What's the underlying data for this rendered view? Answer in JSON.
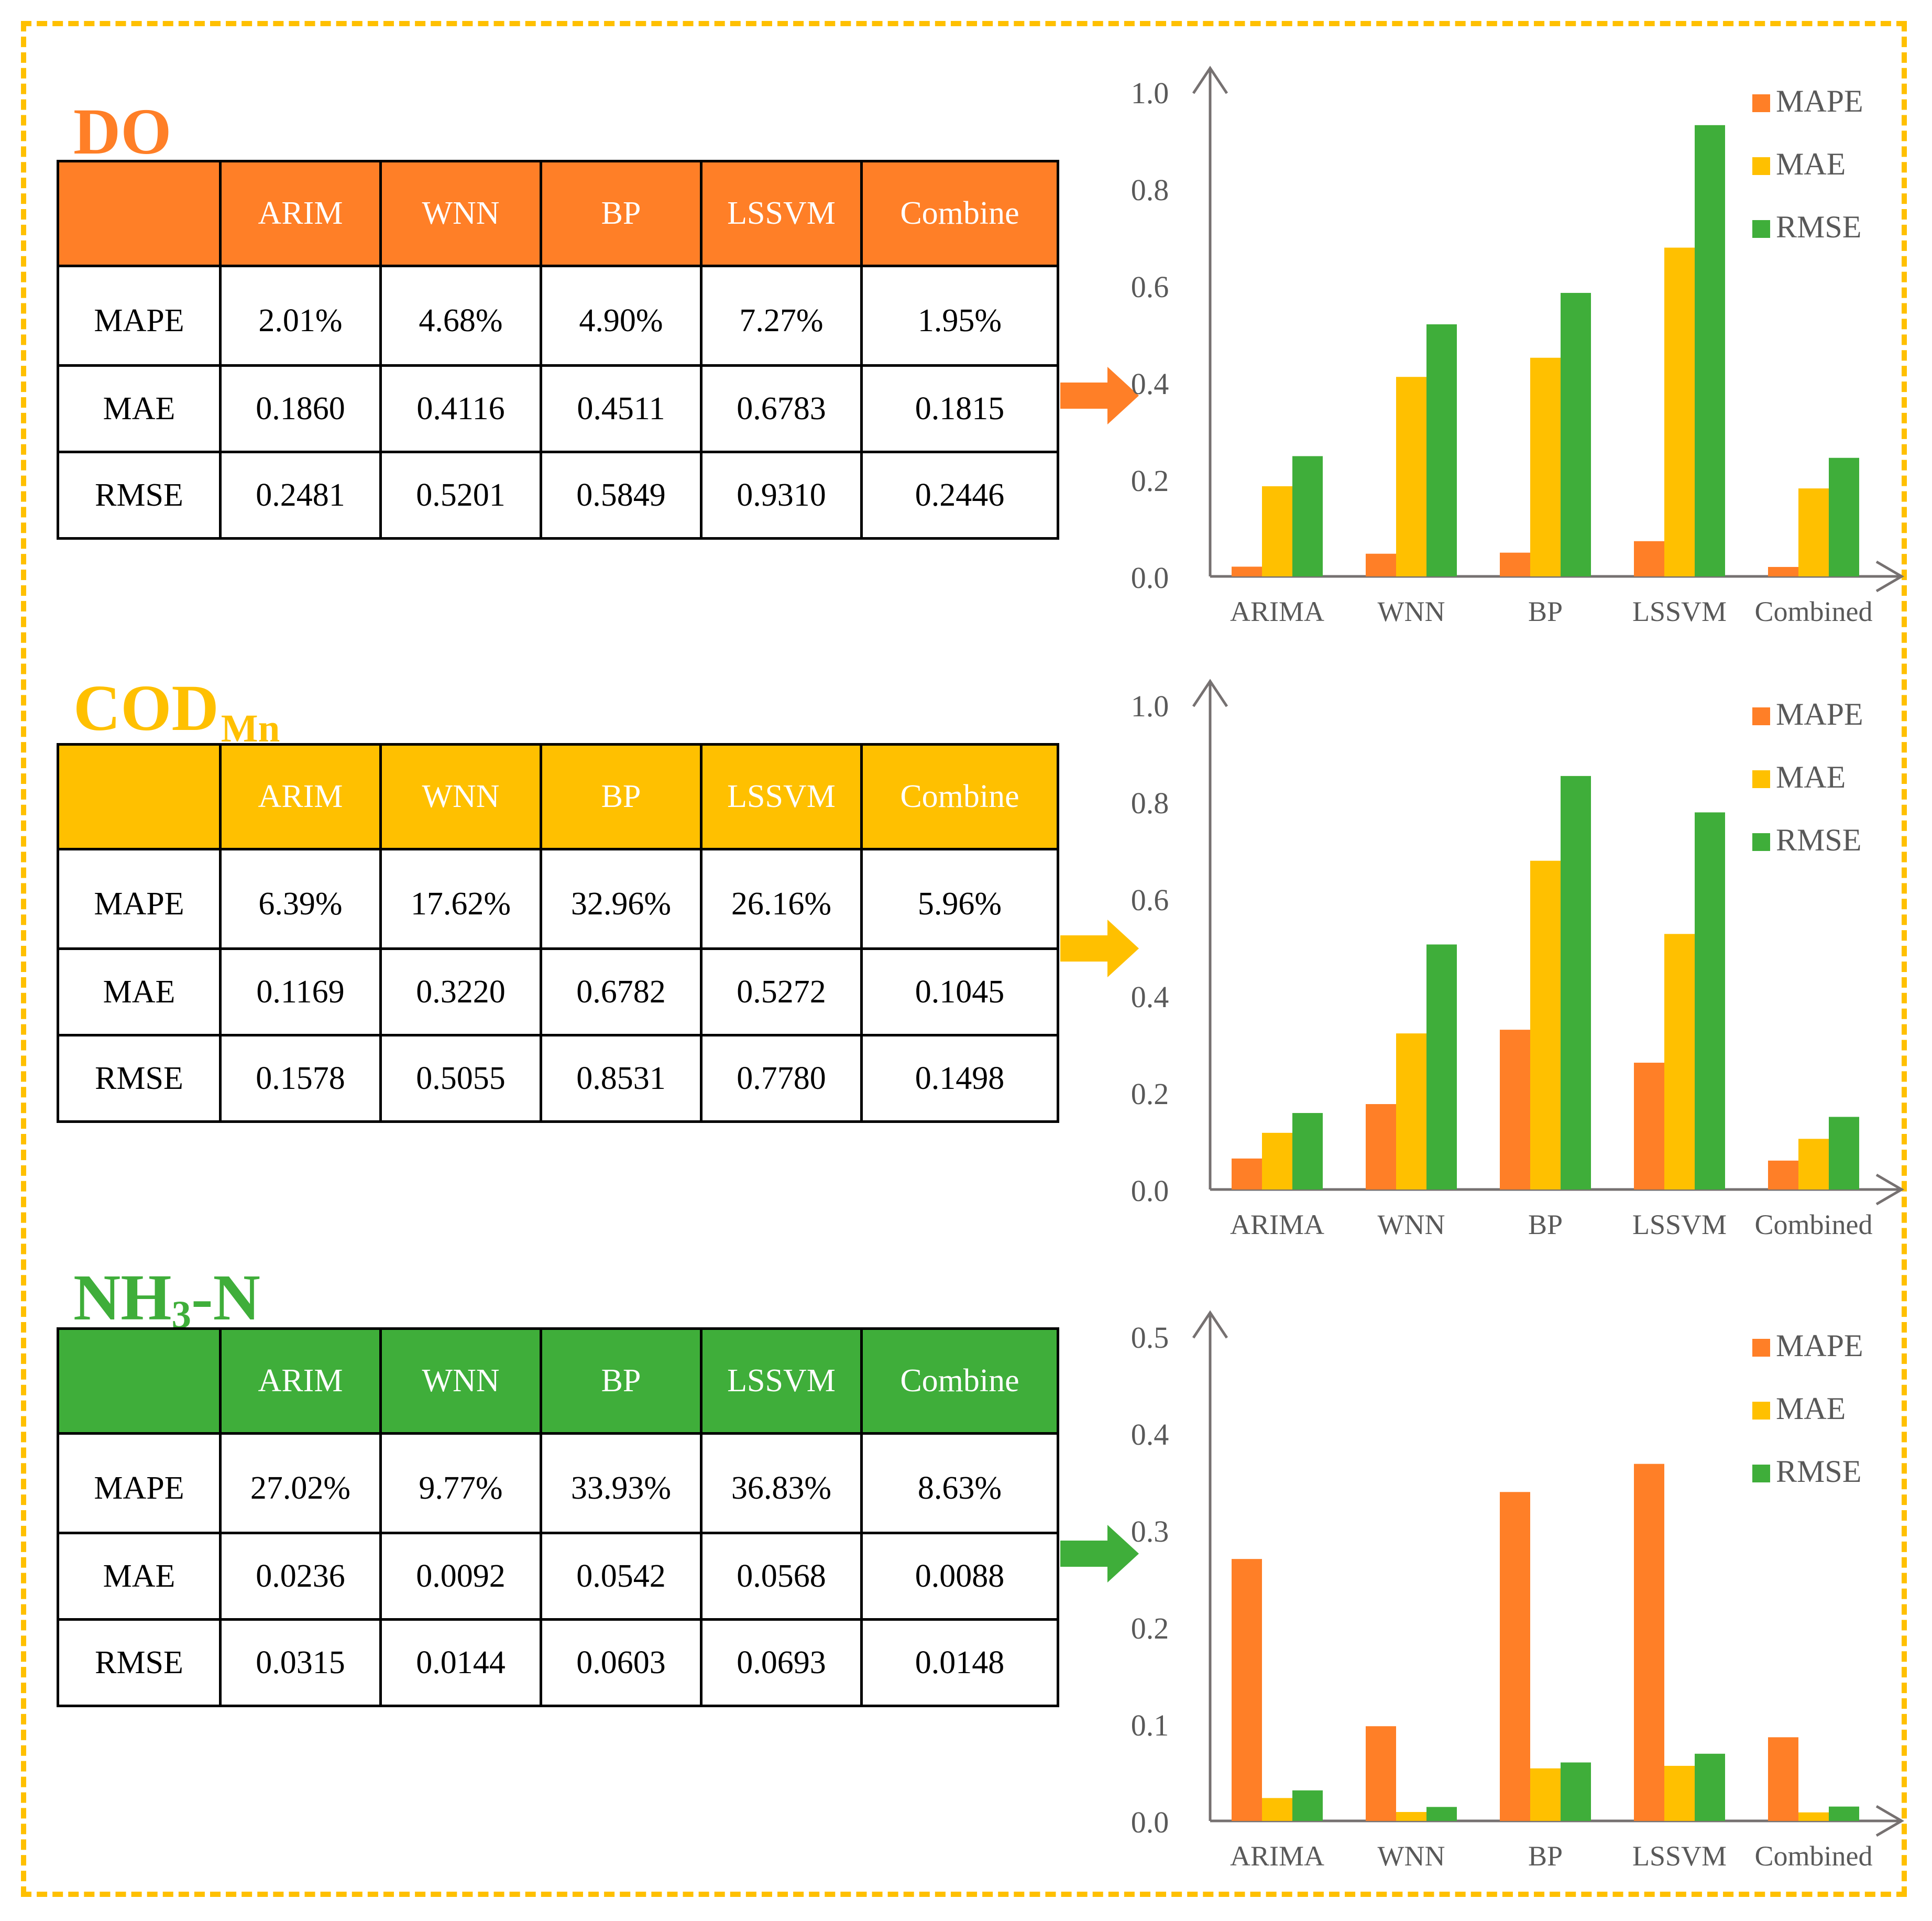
{
  "colors": {
    "frame": "#FFC000",
    "mape": "#FF7F27",
    "mae": "#FFC000",
    "rmse": "#3FAE3A",
    "do": "#FF7F27",
    "codmn": "#FFC000",
    "nh3n": "#3FAE3A"
  },
  "header": {
    "blank": "",
    "c1": "ARIM",
    "c2": "WNN",
    "c3": "BP",
    "c4": "LSSVM",
    "c5": "Combine"
  },
  "sections": {
    "do": {
      "title": "DO",
      "rows": [
        {
          "label": "MAPE",
          "v": [
            "2.01%",
            "4.68%",
            "4.90%",
            "7.27%",
            "1.95%"
          ]
        },
        {
          "label": "MAE",
          "v": [
            "0.1860",
            "0.4116",
            "0.4511",
            "0.6783",
            "0.1815"
          ]
        },
        {
          "label": "RMSE",
          "v": [
            "0.2481",
            "0.5201",
            "0.5849",
            "0.9310",
            "0.2446"
          ]
        }
      ]
    },
    "codmn": {
      "title_main": "COD",
      "title_sub": "Mn",
      "rows": [
        {
          "label": "MAPE",
          "v": [
            "6.39%",
            "17.62%",
            "32.96%",
            "26.16%",
            "5.96%"
          ]
        },
        {
          "label": "MAE",
          "v": [
            "0.1169",
            "0.3220",
            "0.6782",
            "0.5272",
            "0.1045"
          ]
        },
        {
          "label": "RMSE",
          "v": [
            "0.1578",
            "0.5055",
            "0.8531",
            "0.7780",
            "0.1498"
          ]
        }
      ]
    },
    "nh3n": {
      "title_a": "NH",
      "title_sub": "3",
      "title_b": "-N",
      "rows": [
        {
          "label": "MAPE",
          "v": [
            "27.02%",
            "9.77%",
            "33.93%",
            "36.83%",
            "8.63%"
          ]
        },
        {
          "label": "MAE",
          "v": [
            "0.0236",
            "0.0092",
            "0.0542",
            "0.0568",
            "0.0088"
          ]
        },
        {
          "label": "RMSE",
          "v": [
            "0.0315",
            "0.0144",
            "0.0603",
            "0.0693",
            "0.0148"
          ]
        }
      ]
    }
  },
  "chart_data": [
    {
      "type": "bar",
      "categories": [
        "ARIMA",
        "WNN",
        "BP",
        "LSSVM",
        "Combined"
      ],
      "ylim": [
        0,
        1.0
      ],
      "yticks": [
        "0.0",
        "0.2",
        "0.4",
        "0.6",
        "0.8",
        "1.0"
      ],
      "legend_position": "top-right",
      "series": [
        {
          "name": "MAPE",
          "values": [
            0.0201,
            0.0468,
            0.049,
            0.0727,
            0.0195
          ]
        },
        {
          "name": "MAE",
          "values": [
            0.186,
            0.4116,
            0.4511,
            0.6783,
            0.1815
          ]
        },
        {
          "name": "RMSE",
          "values": [
            0.2481,
            0.5201,
            0.5849,
            0.931,
            0.2446
          ]
        }
      ]
    },
    {
      "type": "bar",
      "categories": [
        "ARIMA",
        "WNN",
        "BP",
        "LSSVM",
        "Combined"
      ],
      "ylim": [
        0,
        1.0
      ],
      "yticks": [
        "0.0",
        "0.2",
        "0.4",
        "0.6",
        "0.8",
        "1.0"
      ],
      "legend_position": "top-right",
      "series": [
        {
          "name": "MAPE",
          "values": [
            0.0639,
            0.1762,
            0.3296,
            0.2616,
            0.0596
          ]
        },
        {
          "name": "MAE",
          "values": [
            0.1169,
            0.322,
            0.6782,
            0.5272,
            0.1045
          ]
        },
        {
          "name": "RMSE",
          "values": [
            0.1578,
            0.5055,
            0.8531,
            0.778,
            0.1498
          ]
        }
      ]
    },
    {
      "type": "bar",
      "categories": [
        "ARIMA",
        "WNN",
        "BP",
        "LSSVM",
        "Combined"
      ],
      "ylim": [
        0,
        0.5
      ],
      "yticks": [
        "0.0",
        "0.1",
        "0.2",
        "0.3",
        "0.4",
        "0.5"
      ],
      "legend_position": "top-right",
      "series": [
        {
          "name": "MAPE",
          "values": [
            0.2702,
            0.0977,
            0.3393,
            0.3683,
            0.0863
          ]
        },
        {
          "name": "MAE",
          "values": [
            0.0236,
            0.0092,
            0.0542,
            0.0568,
            0.0088
          ]
        },
        {
          "name": "RMSE",
          "values": [
            0.0315,
            0.0144,
            0.0603,
            0.0693,
            0.0148
          ]
        }
      ]
    }
  ]
}
